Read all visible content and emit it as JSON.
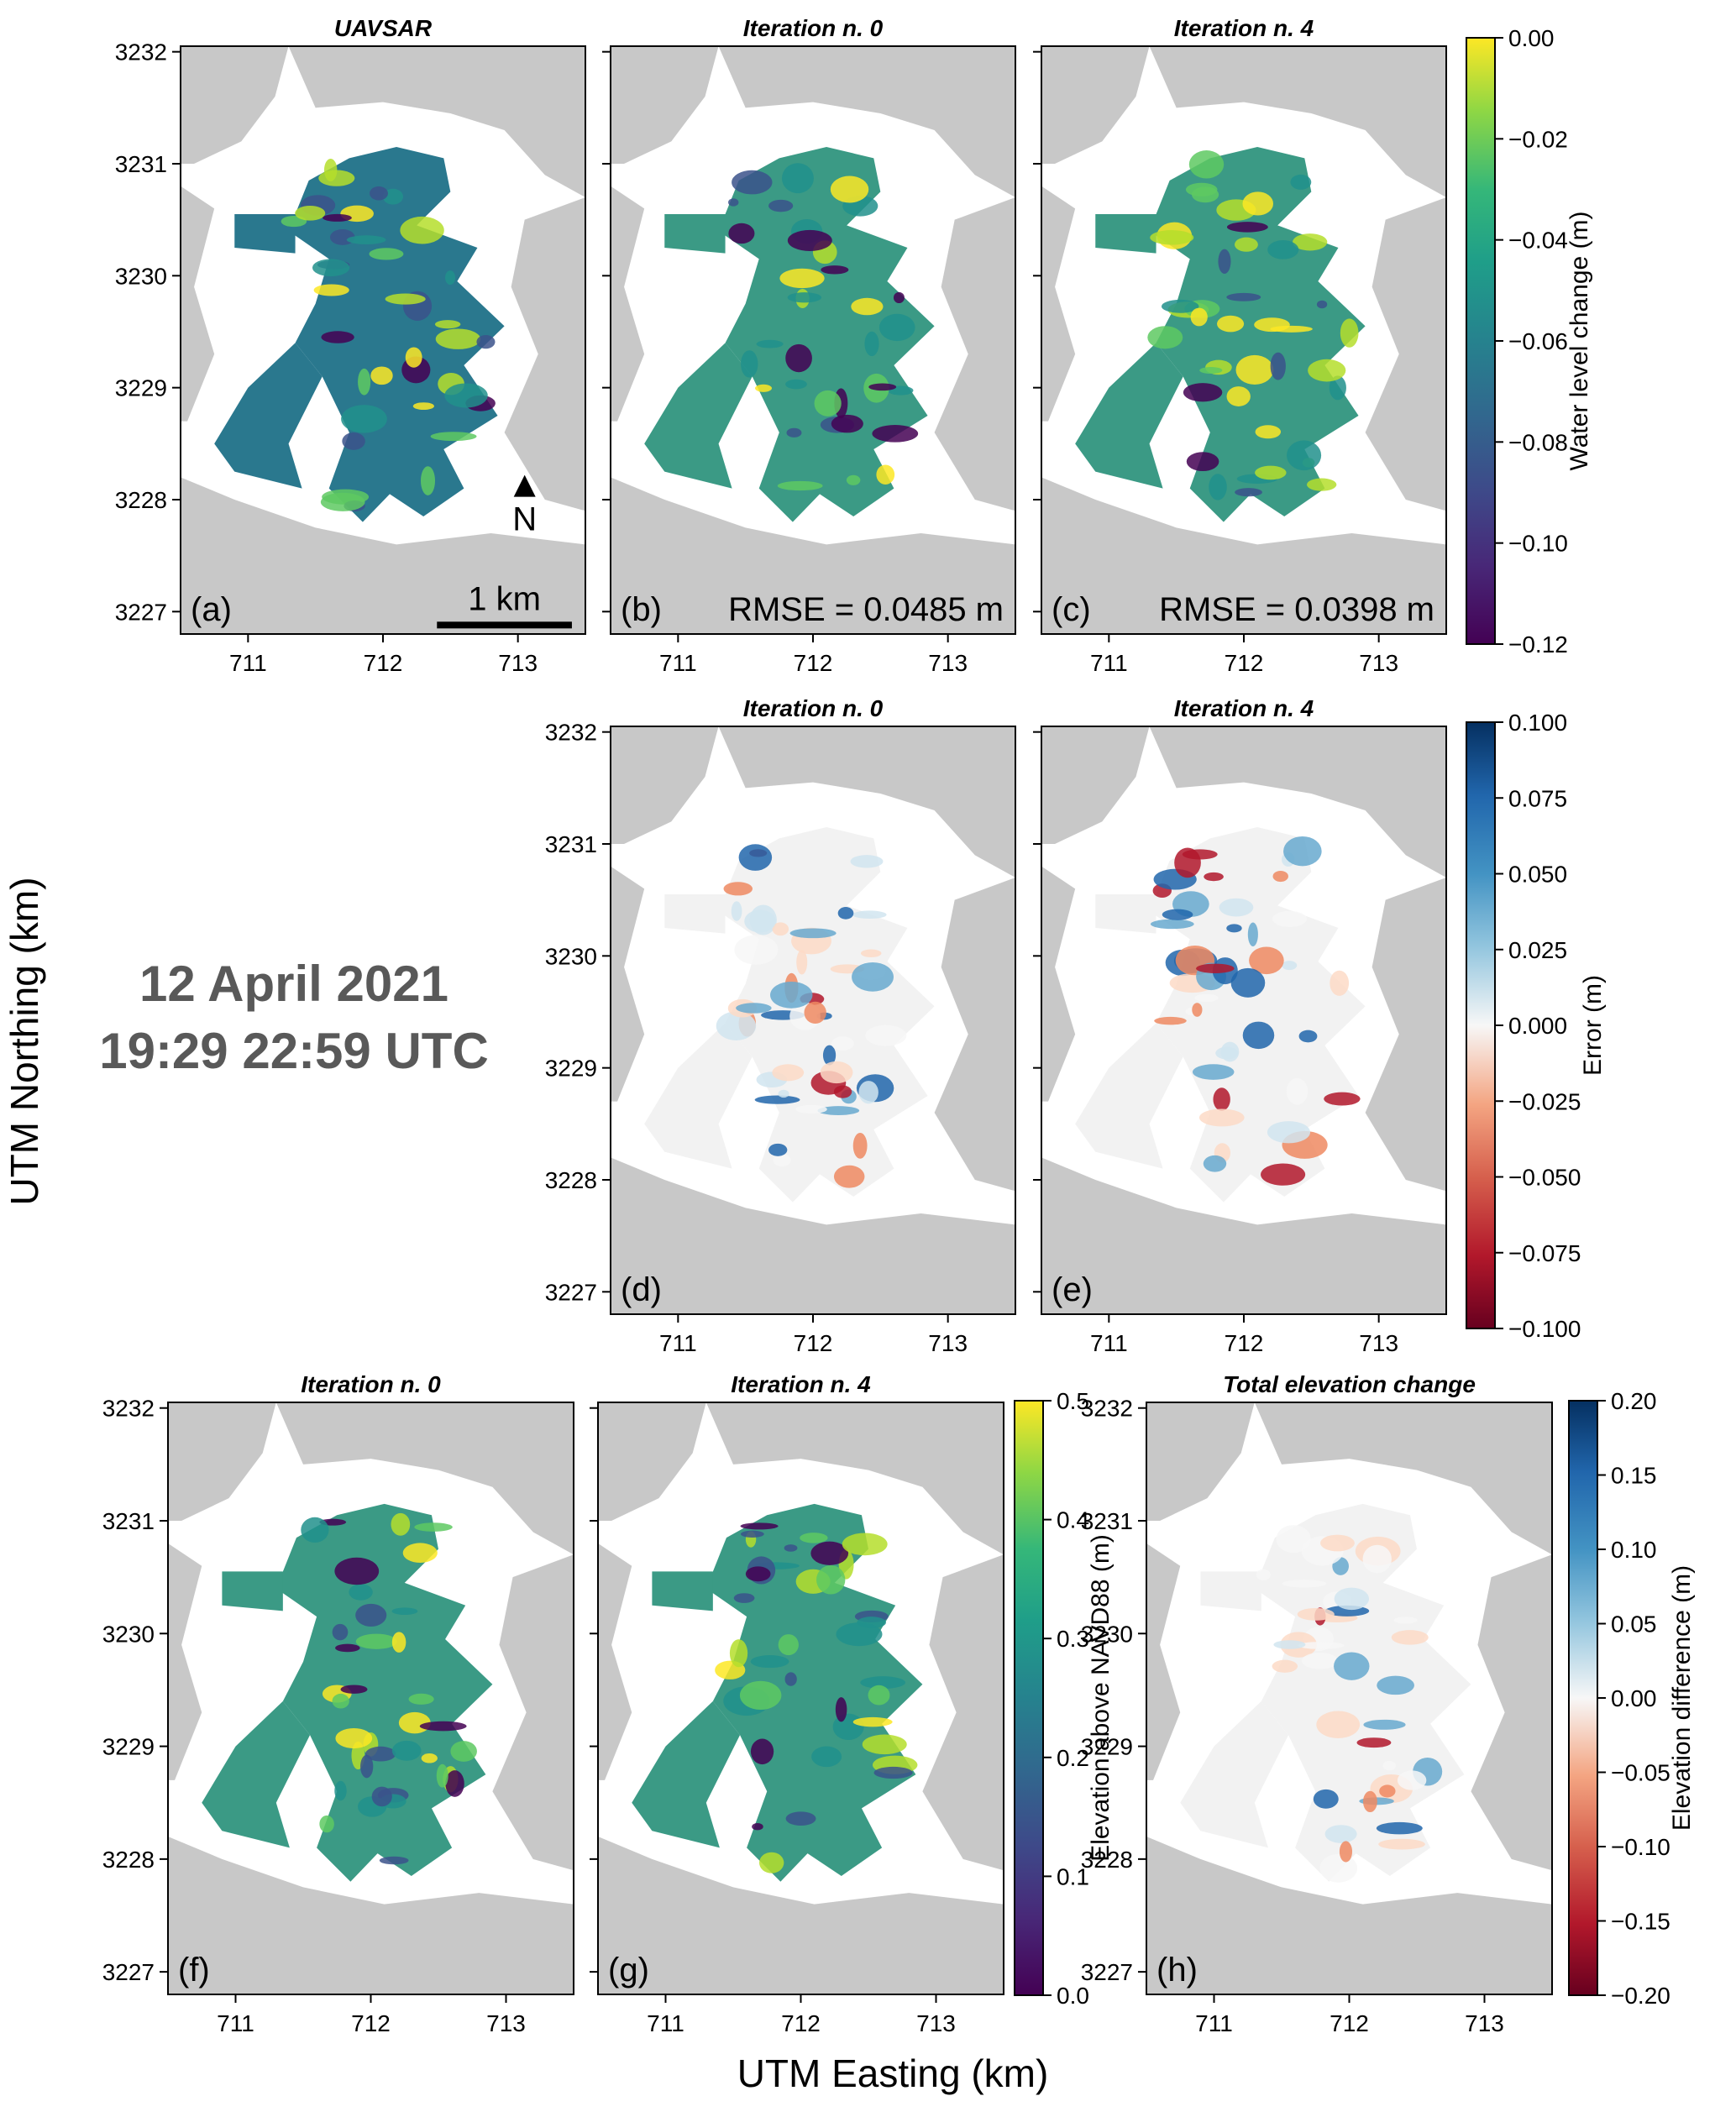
{
  "figure": {
    "date_line1": "12 April 2021",
    "date_line2": "19:29 22:59 UTC",
    "xlabel": "UTM Easting (km)",
    "ylabel": "UTM Northing (km)",
    "north_label": "N",
    "scalebar_label": "1 km",
    "x_ticks": [
      "711",
      "712",
      "713"
    ],
    "y_ticks": [
      "3227",
      "3228",
      "3229",
      "3230",
      "3231",
      "3232"
    ],
    "xlim": [
      710.5,
      713.5
    ],
    "ylim": [
      3226.8,
      3232.05
    ],
    "land_color": "#c8c8c8"
  },
  "panels": [
    {
      "id": "a",
      "title": "UAVSAR",
      "label": "(a)",
      "rmse": "",
      "colormap": "viridis",
      "cmap_min": -0.12,
      "cmap_max": 0.0
    },
    {
      "id": "b",
      "title": "Iteration n. 0",
      "label": "(b)",
      "rmse": "RMSE = 0.0485 m",
      "colormap": "viridis",
      "cmap_min": -0.12,
      "cmap_max": 0.0
    },
    {
      "id": "c",
      "title": "Iteration n. 4",
      "label": "(c)",
      "rmse": "RMSE = 0.0398 m",
      "colormap": "viridis",
      "cmap_min": -0.12,
      "cmap_max": 0.0
    },
    {
      "id": "d",
      "title": "Iteration n. 0",
      "label": "(d)",
      "rmse": "",
      "colormap": "RdBu",
      "cmap_min": -0.1,
      "cmap_max": 0.1
    },
    {
      "id": "e",
      "title": "Iteration n. 4",
      "label": "(e)",
      "rmse": "",
      "colormap": "RdBu",
      "cmap_min": -0.1,
      "cmap_max": 0.1
    },
    {
      "id": "f",
      "title": "Iteration n. 0",
      "label": "(f)",
      "rmse": "",
      "colormap": "viridis",
      "cmap_min": 0.0,
      "cmap_max": 0.5
    },
    {
      "id": "g",
      "title": "Iteration n. 4",
      "label": "(g)",
      "rmse": "",
      "colormap": "viridis",
      "cmap_min": 0.0,
      "cmap_max": 0.5
    },
    {
      "id": "h",
      "title": "Total elevation change",
      "label": "(h)",
      "rmse": "",
      "colormap": "RdBu",
      "cmap_min": -0.2,
      "cmap_max": 0.2
    }
  ],
  "colorbars": [
    {
      "id": "water-level",
      "label": "Water level change (m)",
      "colormap": "viridis",
      "ticks": [
        "0.00",
        "−0.02",
        "−0.04",
        "−0.06",
        "−0.08",
        "−0.10",
        "−0.12"
      ]
    },
    {
      "id": "error",
      "label": "Error (m)",
      "colormap": "RdBu",
      "ticks": [
        "0.100",
        "0.075",
        "0.050",
        "0.025",
        "0.000",
        "−0.025",
        "−0.050",
        "−0.075",
        "−0.100"
      ]
    },
    {
      "id": "elevation",
      "label": "Elevation above NAVD88 (m)",
      "colormap": "viridis",
      "ticks": [
        "0.5",
        "0.4",
        "0.3",
        "0.2",
        "0.1",
        "0.0"
      ]
    },
    {
      "id": "elev-diff",
      "label": "Elevation difference (m)",
      "colormap": "RdBu",
      "ticks": [
        "0.20",
        "0.15",
        "0.10",
        "0.05",
        "0.00",
        "−0.05",
        "−0.10",
        "−0.15",
        "−0.20"
      ]
    }
  ]
}
